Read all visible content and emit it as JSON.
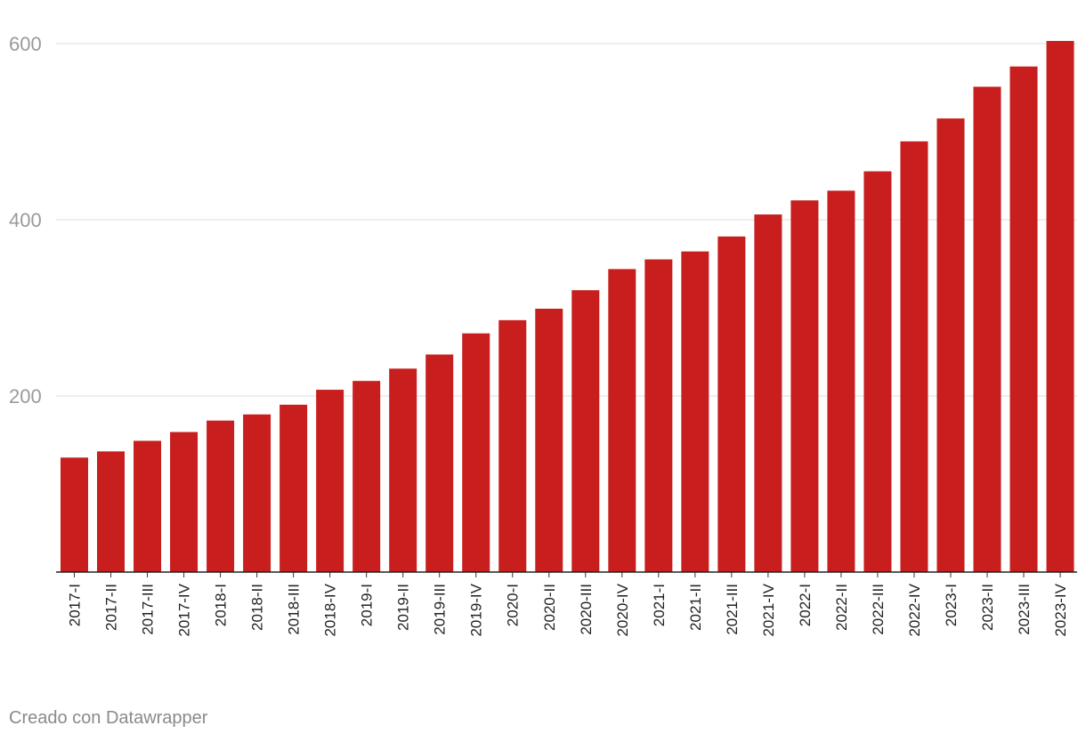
{
  "chart_data": {
    "type": "bar",
    "categories": [
      "2017-I",
      "2017-II",
      "2017-III",
      "2017-IV",
      "2018-I",
      "2018-II",
      "2018-III",
      "2018-IV",
      "2019-I",
      "2019-II",
      "2019-III",
      "2019-IV",
      "2020-I",
      "2020-II",
      "2020-III",
      "2020-IV",
      "2021-I",
      "2021-II",
      "2021-III",
      "2021-IV",
      "2022-I",
      "2022-II",
      "2022-III",
      "2022-IV",
      "2023-I",
      "2023-II",
      "2023-III",
      "2023-IV"
    ],
    "values": [
      130,
      137,
      149,
      159,
      172,
      179,
      190,
      207,
      217,
      231,
      247,
      271,
      286,
      299,
      320,
      344,
      355,
      364,
      381,
      406,
      422,
      433,
      455,
      489,
      515,
      551,
      574,
      603
    ],
    "yticks": [
      200,
      400,
      600
    ],
    "ylim": [
      0,
      620
    ],
    "grid": true,
    "bar_color": "#c81e1e",
    "title": "",
    "xlabel": "",
    "ylabel": ""
  },
  "footer": {
    "credit": "Creado con Datawrapper"
  }
}
